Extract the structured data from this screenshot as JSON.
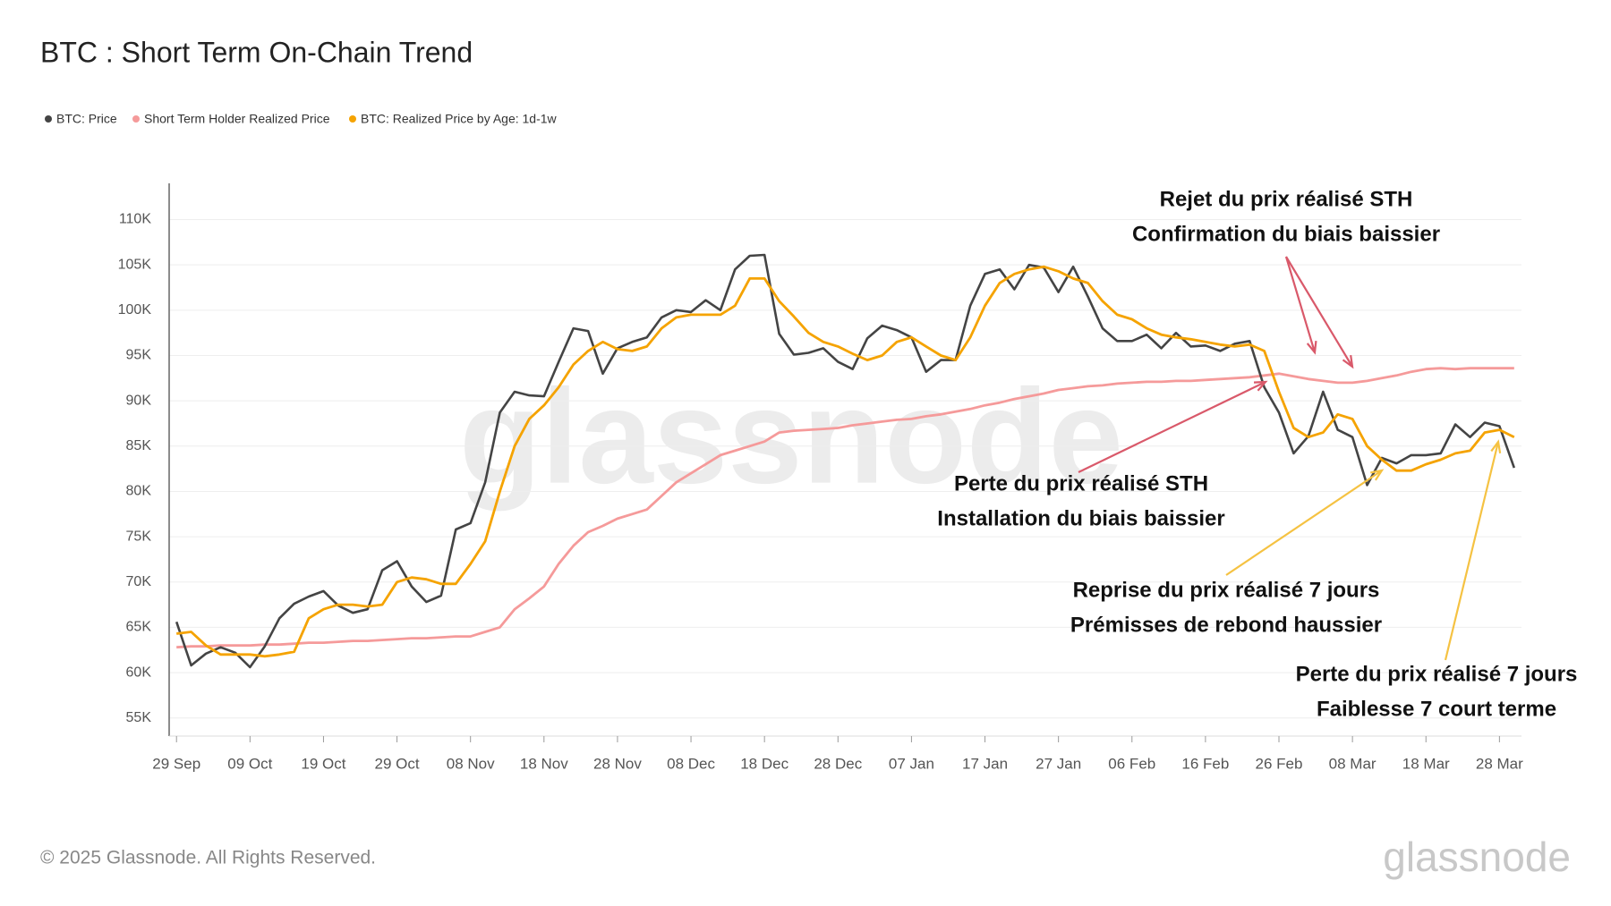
{
  "chart_data": {
    "type": "line",
    "title": "BTC : Short Term On-Chain Trend",
    "x": [
      0,
      2,
      4,
      6,
      8,
      10,
      12,
      14,
      16,
      18,
      20,
      22,
      24,
      26,
      28,
      30,
      32,
      34,
      36,
      38,
      40,
      42,
      44,
      46,
      48,
      50,
      52,
      54,
      56,
      58,
      60,
      62,
      64,
      66,
      68,
      70,
      72,
      74,
      76,
      78,
      80,
      82,
      84,
      86,
      88,
      90,
      92,
      94,
      96,
      98,
      100,
      102,
      104,
      106,
      108,
      110,
      112,
      114,
      116,
      118,
      120,
      122,
      124,
      126,
      128,
      130,
      132,
      134,
      136,
      138,
      140,
      142,
      144,
      146,
      148,
      150,
      152,
      154,
      156,
      158,
      160,
      162,
      164,
      166,
      168,
      170,
      172,
      174,
      176,
      178,
      180,
      182
    ],
    "xlim": [
      -1,
      183
    ],
    "xticks": [
      {
        "value": 0,
        "label": "29 Sep"
      },
      {
        "value": 10,
        "label": "09 Oct"
      },
      {
        "value": 20,
        "label": "19 Oct"
      },
      {
        "value": 30,
        "label": "29 Oct"
      },
      {
        "value": 40,
        "label": "08 Nov"
      },
      {
        "value": 50,
        "label": "18 Nov"
      },
      {
        "value": 60,
        "label": "28 Nov"
      },
      {
        "value": 70,
        "label": "08 Dec"
      },
      {
        "value": 80,
        "label": "18 Dec"
      },
      {
        "value": 90,
        "label": "28 Dec"
      },
      {
        "value": 100,
        "label": "07 Jan"
      },
      {
        "value": 110,
        "label": "17 Jan"
      },
      {
        "value": 120,
        "label": "27 Jan"
      },
      {
        "value": 130,
        "label": "06 Feb"
      },
      {
        "value": 140,
        "label": "16 Feb"
      },
      {
        "value": 150,
        "label": "26 Feb"
      },
      {
        "value": 160,
        "label": "08 Mar"
      },
      {
        "value": 170,
        "label": "18 Mar"
      },
      {
        "value": 180,
        "label": "28 Mar"
      }
    ],
    "ylim": [
      53000,
      114000
    ],
    "yticks": [
      {
        "value": 55000,
        "label": "55K"
      },
      {
        "value": 60000,
        "label": "60K"
      },
      {
        "value": 65000,
        "label": "65K"
      },
      {
        "value": 70000,
        "label": "70K"
      },
      {
        "value": 75000,
        "label": "75K"
      },
      {
        "value": 80000,
        "label": "80K"
      },
      {
        "value": 85000,
        "label": "85K"
      },
      {
        "value": 90000,
        "label": "90K"
      },
      {
        "value": 95000,
        "label": "95K"
      },
      {
        "value": 100000,
        "label": "100K"
      },
      {
        "value": 105000,
        "label": "105K"
      },
      {
        "value": 110000,
        "label": "110K"
      }
    ],
    "grid": true,
    "series": [
      {
        "name": "BTC: Price",
        "color": "#444444",
        "values": [
          65600,
          60800,
          62100,
          62800,
          62200,
          60600,
          62900,
          66000,
          67600,
          68400,
          69000,
          67400,
          66600,
          67000,
          71300,
          72300,
          69500,
          67800,
          68500,
          75800,
          76500,
          81000,
          88700,
          91000,
          90600,
          90500,
          94300,
          98000,
          97700,
          93000,
          95800,
          96500,
          97000,
          99200,
          100000,
          99800,
          101100,
          100000,
          104500,
          106000,
          106100,
          97400,
          95100,
          95300,
          95800,
          94300,
          93500,
          96900,
          98300,
          97800,
          97000,
          93200,
          94500,
          94500,
          100500,
          104000,
          104500,
          102300,
          105000,
          104700,
          102000,
          104800,
          101500,
          98000,
          96600,
          96600,
          97300,
          95800,
          97500,
          96000,
          96100,
          95500,
          96300,
          96600,
          91500,
          88700,
          84200,
          86100,
          91000,
          86800,
          86000,
          80700,
          83700,
          83100,
          84000,
          84000,
          84200,
          87400,
          86000,
          87600,
          87200,
          82600
        ]
      },
      {
        "name": "Short Term Holder Realized Price",
        "color": "#f59a9a",
        "values": [
          62800,
          62900,
          62900,
          63000,
          63000,
          63000,
          63100,
          63100,
          63200,
          63300,
          63300,
          63400,
          63500,
          63500,
          63600,
          63700,
          63800,
          63800,
          63900,
          64000,
          64000,
          64500,
          65000,
          67000,
          68200,
          69500,
          72000,
          74000,
          75500,
          76200,
          77000,
          77500,
          78000,
          79500,
          81000,
          82000,
          83000,
          84000,
          84500,
          85000,
          85500,
          86500,
          86700,
          86800,
          86900,
          87000,
          87300,
          87500,
          87700,
          87900,
          88000,
          88300,
          88500,
          88800,
          89100,
          89500,
          89800,
          90200,
          90500,
          90800,
          91200,
          91400,
          91600,
          91700,
          91900,
          92000,
          92100,
          92100,
          92200,
          92200,
          92300,
          92400,
          92500,
          92600,
          92800,
          93000,
          92700,
          92400,
          92200,
          92000,
          92000,
          92200,
          92500,
          92800,
          93200,
          93500,
          93600,
          93500,
          93600,
          93600,
          93600,
          93600
        ]
      },
      {
        "name": "BTC: Realized Price by Age: 1d-1w",
        "color": "#f5a300",
        "values": [
          64300,
          64500,
          63000,
          62000,
          62000,
          62000,
          61800,
          62000,
          62300,
          66000,
          67000,
          67500,
          67500,
          67300,
          67500,
          70000,
          70500,
          70300,
          69800,
          69800,
          72000,
          74500,
          80000,
          85000,
          88000,
          89500,
          91500,
          94000,
          95500,
          96500,
          95700,
          95500,
          96000,
          98000,
          99200,
          99500,
          99500,
          99500,
          100500,
          103500,
          103500,
          101000,
          99300,
          97500,
          96500,
          96000,
          95200,
          94500,
          95000,
          96500,
          97000,
          96000,
          95000,
          94500,
          97000,
          100500,
          103000,
          104000,
          104500,
          104800,
          104300,
          103500,
          103000,
          101000,
          99500,
          99000,
          98000,
          97300,
          97000,
          96800,
          96500,
          96200,
          96000,
          96200,
          95500,
          91000,
          87000,
          86000,
          86500,
          88500,
          88000,
          85000,
          83500,
          82300,
          82300,
          83000,
          83500,
          84200,
          84500,
          86500,
          86800,
          86000
        ]
      }
    ],
    "annotations": [
      {
        "lines": [
          "Rejet du prix réalisé STH",
          "Confirmation du biais baissier"
        ],
        "color": "#d9596a"
      },
      {
        "lines": [
          "Perte du prix réalisé STH",
          "Installation du biais baissier"
        ],
        "color": "#d9596a"
      },
      {
        "lines": [
          "Reprise du prix réalisé 7 jours",
          "Prémisses de rebond haussier"
        ],
        "color": "#f5c242"
      },
      {
        "lines": [
          "Perte du prix réalisé 7 jours",
          "Faiblesse 7 court terme"
        ],
        "color": "#f5c242"
      }
    ],
    "watermark": "glassnode",
    "footer": "© 2025 Glassnode. All Rights Reserved.",
    "logo": "glassnode"
  }
}
